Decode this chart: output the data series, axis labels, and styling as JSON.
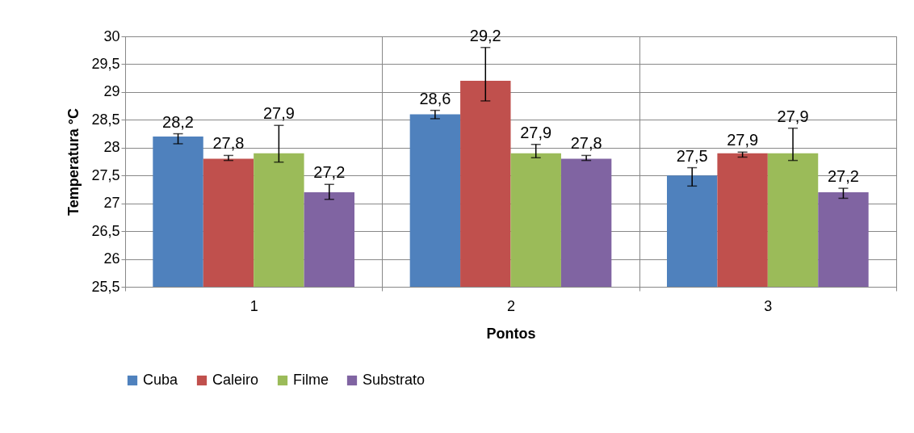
{
  "chart_data": {
    "type": "bar",
    "xlabel": "Pontos",
    "ylabel": "Temperatura °C",
    "categories": [
      "1",
      "2",
      "3"
    ],
    "series": [
      {
        "name": "Cuba",
        "color": "#4f81bd",
        "values": [
          28.2,
          28.6,
          27.5
        ],
        "value_labels": [
          "28,2",
          "28,6",
          "27,5"
        ],
        "errors": [
          [
            28.07,
            28.25
          ],
          [
            28.52,
            28.67
          ],
          [
            27.31,
            27.64
          ]
        ]
      },
      {
        "name": "Caleiro",
        "color": "#c0504d",
        "values": [
          27.8,
          29.2,
          27.9
        ],
        "value_labels": [
          "27,8",
          "29,2",
          "27,9"
        ],
        "errors": [
          [
            27.77,
            27.86
          ],
          [
            28.84,
            29.8
          ],
          [
            27.83,
            27.92
          ]
        ]
      },
      {
        "name": "Filme",
        "color": "#9bbb59",
        "values": [
          27.9,
          27.9,
          27.9
        ],
        "value_labels": [
          "27,9",
          "27,9",
          "27,9"
        ],
        "errors": [
          [
            27.74,
            28.4
          ],
          [
            27.82,
            28.06
          ],
          [
            27.77,
            28.35
          ]
        ]
      },
      {
        "name": "Substrato",
        "color": "#8064a2",
        "values": [
          27.2,
          27.8,
          27.2
        ],
        "value_labels": [
          "27,2",
          "27,8",
          "27,2"
        ],
        "errors": [
          [
            27.07,
            27.34
          ],
          [
            27.77,
            27.86
          ],
          [
            27.09,
            27.27
          ]
        ]
      }
    ],
    "ylim": [
      25.5,
      30
    ],
    "yticks": [
      {
        "value": 25.5,
        "label": "25,5"
      },
      26,
      {
        "value": 26.5,
        "label": "26,5"
      },
      27,
      {
        "value": 27.5,
        "label": "27,5"
      },
      28,
      {
        "value": 28.5,
        "label": "28,5"
      },
      29,
      {
        "value": 29.5,
        "label": "29,5"
      },
      30
    ],
    "grid": true,
    "legend": "bottom",
    "data_labels": true
  }
}
